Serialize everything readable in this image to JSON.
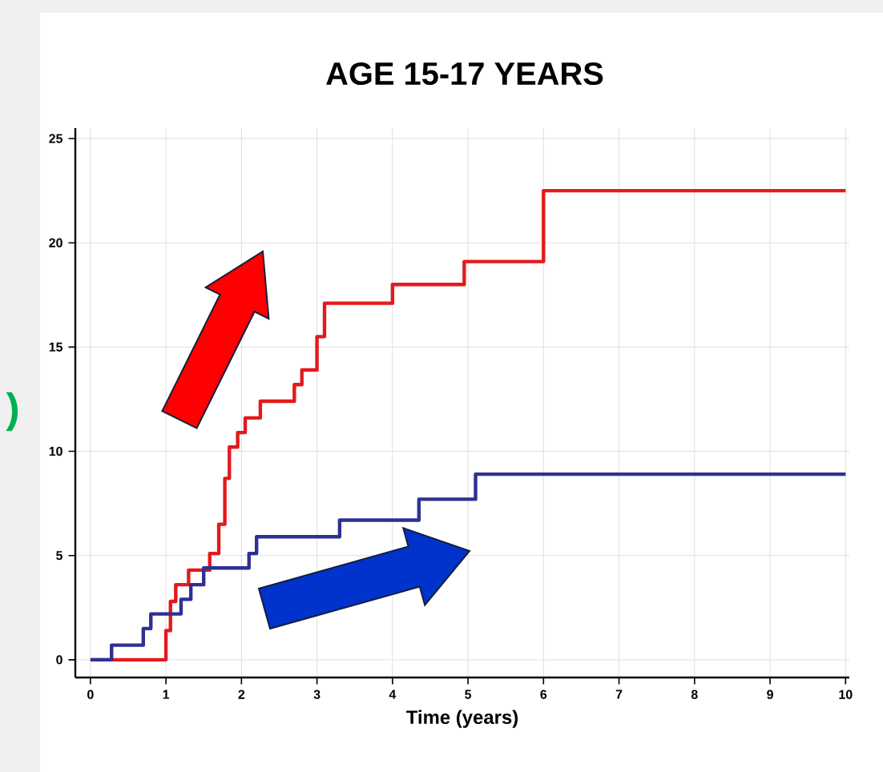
{
  "chart_data": {
    "type": "step",
    "title": "AGE 15-17 YEARS",
    "xlabel": "Time (years)",
    "annotations": [
      ")"
    ],
    "xlim": [
      -0.2,
      10.05
    ],
    "ylim": [
      -0.85,
      25.5
    ],
    "xticks": [
      0,
      1,
      2,
      3,
      4,
      5,
      6,
      7,
      8,
      9,
      10
    ],
    "yticks": [
      0,
      5,
      10,
      15,
      20,
      25
    ],
    "grid": true,
    "series": [
      {
        "color": "#e31a1c",
        "x": [
          0,
          1,
          1.06,
          1.13,
          1.3,
          1.58,
          1.7,
          1.78,
          1.84,
          1.95,
          2.05,
          2.25,
          2.7,
          2.8,
          3.0,
          3.1,
          4.0,
          4.95,
          6.0,
          10
        ],
        "values": [
          0,
          1.4,
          2.8,
          3.6,
          4.3,
          5.1,
          6.5,
          8.7,
          10.2,
          10.9,
          11.6,
          12.4,
          13.2,
          13.9,
          15.5,
          17.1,
          18.0,
          19.1,
          22.5,
          22.5
        ]
      },
      {
        "color": "#2e3192",
        "x": [
          0,
          0.28,
          0.7,
          0.8,
          1.2,
          1.33,
          1.5,
          2.1,
          2.2,
          3.3,
          4.35,
          5.1,
          10
        ],
        "values": [
          0,
          0.7,
          1.5,
          2.2,
          2.9,
          3.6,
          4.4,
          5.1,
          5.9,
          6.7,
          7.7,
          8.9,
          8.9
        ]
      }
    ]
  }
}
